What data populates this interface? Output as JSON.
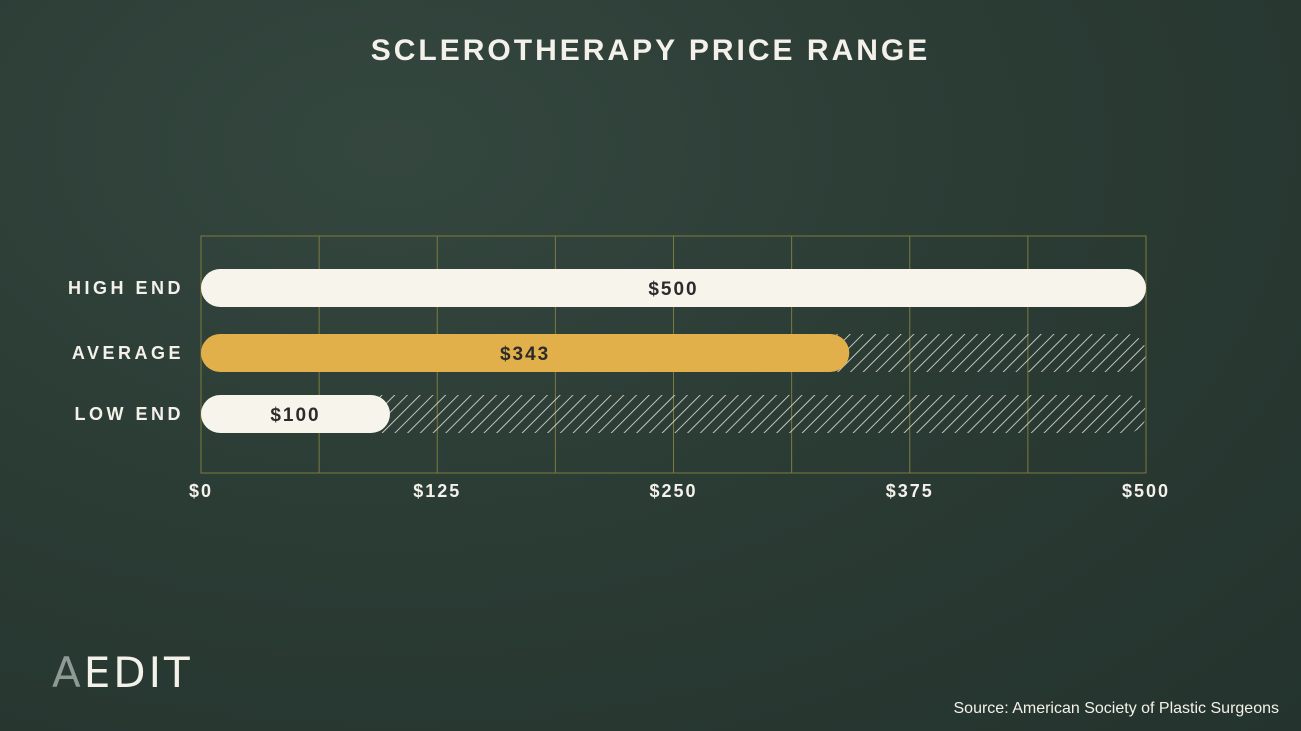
{
  "chart_data": {
    "type": "bar",
    "orientation": "horizontal",
    "title": "SCLEROTHERAPY PRICE RANGE",
    "categories": [
      "HIGH END",
      "AVERAGE",
      "LOW END"
    ],
    "values": [
      500,
      343,
      100
    ],
    "value_labels": [
      "$500",
      "$343",
      "$100"
    ],
    "xlim": [
      0,
      500
    ],
    "xticks": [
      0,
      125,
      250,
      375,
      500
    ],
    "xtick_labels": [
      "$0",
      "$125",
      "$250",
      "$375",
      "$500"
    ],
    "grid": true,
    "colors": {
      "HIGH END": "#f7f4ec",
      "AVERAGE": "#e2b04b",
      "LOW END": "#f7f4ec"
    }
  },
  "brand": {
    "logo_a": "A",
    "logo_rest": "EDIT"
  },
  "source": "Source: American Society of Plastic Surgeons"
}
